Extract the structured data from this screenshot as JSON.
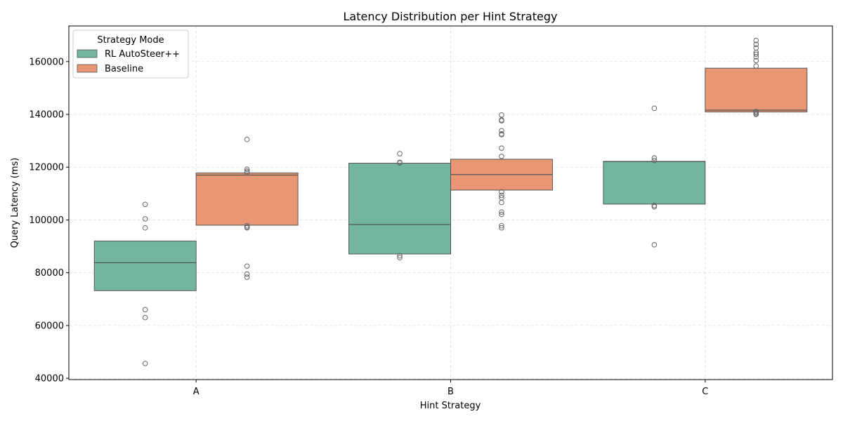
{
  "chart_data": {
    "type": "box",
    "title": "Latency Distribution per Hint Strategy",
    "xlabel": "Hint Strategy",
    "ylabel": "Query Latency (ms)",
    "categories": [
      "A",
      "B",
      "C"
    ],
    "ylim": [
      39500,
      173500
    ],
    "yticks": [
      40000,
      60000,
      80000,
      100000,
      120000,
      140000,
      160000
    ],
    "grid": true,
    "legend": {
      "title": "Strategy Mode",
      "placement": "top-left"
    },
    "series": [
      {
        "name": "RL AutoSteer++",
        "color": "#72b6a1",
        "boxes": [
          {
            "category": "A",
            "q1": 73200,
            "median": 83800,
            "q3": 92000,
            "whisker_low": 73200,
            "whisker_high": 92000,
            "outliers": [
              105900,
              100400,
              97000,
              66000,
              63000,
              45600
            ]
          },
          {
            "category": "B",
            "q1": 87100,
            "median": 98300,
            "q3": 121500,
            "whisker_low": 87100,
            "whisker_high": 121500,
            "outliers": [
              125100,
              121800,
              121600,
              86400,
              85700
            ]
          },
          {
            "category": "C",
            "q1": 106000,
            "median": 122100,
            "q3": 122200,
            "whisker_low": 106000,
            "whisker_high": 122200,
            "outliers": [
              142300,
              123500,
              122500,
              105500,
              105000,
              90600
            ]
          }
        ]
      },
      {
        "name": "Baseline",
        "color": "#e99675",
        "boxes": [
          {
            "category": "A",
            "q1": 98000,
            "median": 117000,
            "q3": 117800,
            "whisker_low": 98000,
            "whisker_high": 117800,
            "outliers": [
              130500,
              119200,
              118500,
              118000,
              97800,
              97300,
              97000,
              82500,
              79500,
              78300
            ]
          },
          {
            "category": "B",
            "q1": 111300,
            "median": 117200,
            "q3": 123000,
            "whisker_low": 111300,
            "whisker_high": 123000,
            "outliers": [
              139800,
              137900,
              137600,
              133800,
              132600,
              132300,
              127200,
              124100,
              110600,
              109300,
              108400,
              106600,
              103000,
              102100,
              97800,
              97000
            ]
          },
          {
            "category": "C",
            "q1": 140900,
            "median": 141600,
            "q3": 157500,
            "whisker_low": 140900,
            "whisker_high": 157500,
            "outliers": [
              168000,
              166500,
              165200,
              163500,
              162800,
              161800,
              160400,
              158300,
              141100,
              140700,
              140300,
              140000
            ]
          }
        ]
      }
    ]
  }
}
